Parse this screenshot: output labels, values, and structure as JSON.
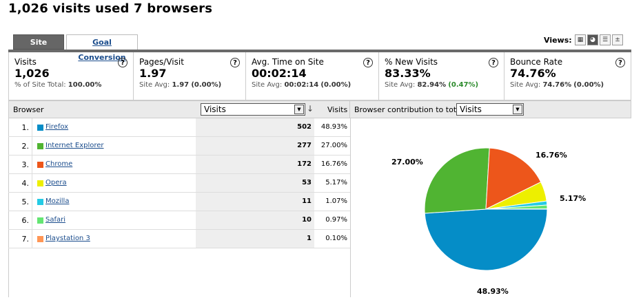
{
  "page": {
    "title": "1,026 visits used 7 browsers"
  },
  "tabs": {
    "site_usage": "Site Usage",
    "goal_conversion": "Goal Conversion"
  },
  "views": {
    "label": "Views:",
    "icons": [
      "grid-icon",
      "pie-icon",
      "bar-icon",
      "comparison-icon"
    ]
  },
  "metrics": [
    {
      "label": "Visits",
      "value": "1,026",
      "sub_prefix": "% of Site Total: ",
      "sub_value": "100.00%",
      "sub_delta": ""
    },
    {
      "label": "Pages/Visit",
      "value": "1.97",
      "sub_prefix": "Site Avg: ",
      "sub_value": "1.97",
      "sub_delta": "(0.00%)"
    },
    {
      "label": "Avg. Time on Site",
      "value": "00:02:14",
      "sub_prefix": "Site Avg: ",
      "sub_value": "00:02:14",
      "sub_delta": "(0.00%)"
    },
    {
      "label": "% New Visits",
      "value": "83.33%",
      "sub_prefix": "Site Avg: ",
      "sub_value": "82.94%",
      "sub_delta": "(0.47%)"
    },
    {
      "label": "Bounce Rate",
      "value": "74.76%",
      "sub_prefix": "Site Avg: ",
      "sub_value": "74.76%",
      "sub_delta": "(0.00%)"
    }
  ],
  "help_glyph": "?",
  "table": {
    "header_browser": "Browser",
    "metric_select": "Visits",
    "header_visits": "Visits",
    "rows": [
      {
        "idx": "1.",
        "name": "Firefox",
        "visits": "502",
        "pct": "48.93%",
        "color": "#058dc7"
      },
      {
        "idx": "2.",
        "name": "Internet Explorer",
        "visits": "277",
        "pct": "27.00%",
        "color": "#50b432"
      },
      {
        "idx": "3.",
        "name": "Chrome",
        "visits": "172",
        "pct": "16.76%",
        "color": "#ed561b"
      },
      {
        "idx": "4.",
        "name": "Opera",
        "visits": "53",
        "pct": "5.17%",
        "color": "#edef00"
      },
      {
        "idx": "5.",
        "name": "Mozilla",
        "visits": "11",
        "pct": "1.07%",
        "color": "#24cbe5"
      },
      {
        "idx": "6.",
        "name": "Safari",
        "visits": "10",
        "pct": "0.97%",
        "color": "#64e572"
      },
      {
        "idx": "7.",
        "name": "Playstation 3",
        "visits": "1",
        "pct": "0.10%",
        "color": "#ff9655"
      }
    ]
  },
  "chart_header": {
    "label": "Browser contribution to total:",
    "select": "Visits"
  },
  "chart_data": {
    "type": "pie",
    "categories": [
      "Firefox",
      "Internet Explorer",
      "Chrome",
      "Opera",
      "Mozilla",
      "Safari",
      "Playstation 3"
    ],
    "values": [
      48.93,
      27.0,
      16.76,
      5.17,
      1.07,
      0.97,
      0.1
    ],
    "colors": [
      "#058dc7",
      "#50b432",
      "#ed561b",
      "#edef00",
      "#24cbe5",
      "#64e572",
      "#ff9655"
    ],
    "labels": [
      "48.93%",
      "27.00%",
      "16.76%",
      "5.17%"
    ]
  }
}
